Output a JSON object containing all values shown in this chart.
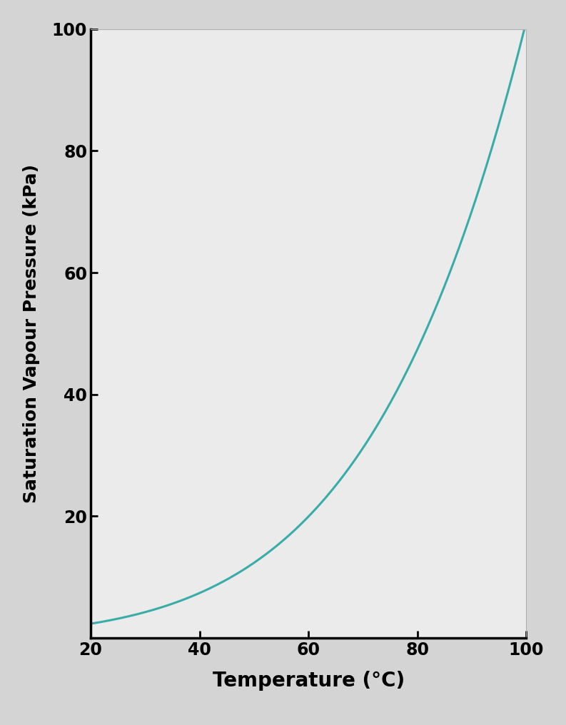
{
  "xlabel": "Temperature (°C)",
  "ylabel": "Saturation Vapour Pressure (kPa)",
  "xlim": [
    20,
    100
  ],
  "ylim": [
    0,
    100
  ],
  "xticks": [
    20,
    40,
    60,
    80,
    100
  ],
  "yticks": [
    20,
    40,
    60,
    80,
    100
  ],
  "line_color": "#3aaca8",
  "line_width": 2.2,
  "background_color": "#d4d4d4",
  "plot_background_color": "#ebebeb",
  "xlabel_fontsize": 20,
  "ylabel_fontsize": 18,
  "tick_fontsize": 17,
  "tick_fontweight": "bold",
  "label_fontweight": "bold"
}
